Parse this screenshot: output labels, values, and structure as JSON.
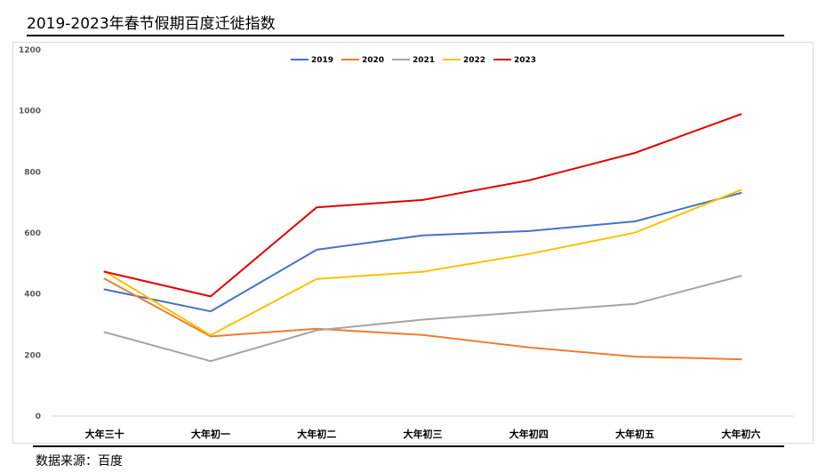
{
  "title": "2019-2023年春节假期百度迁徙指数",
  "source": "数据来源：百度",
  "chart_data": {
    "type": "line",
    "title": "2019-2023年春节假期百度迁徙指数",
    "categories": [
      "大年三十",
      "大年初一",
      "大年初二",
      "大年初三",
      "大年初四",
      "大年初五",
      "大年初六"
    ],
    "ylim": [
      0,
      1200
    ],
    "yticks": [
      0,
      200,
      400,
      600,
      800,
      1000,
      1200
    ],
    "grid": false,
    "legend": "top-center",
    "series": [
      {
        "name": "2019",
        "color": "#4472C4",
        "values": [
          415,
          343,
          545,
          592,
          606,
          638,
          731
        ]
      },
      {
        "name": "2020",
        "color": "#ED7D31",
        "values": [
          450,
          261,
          286,
          266,
          225,
          195,
          186
        ]
      },
      {
        "name": "2021",
        "color": "#A5A5A5",
        "values": [
          275,
          180,
          281,
          316,
          342,
          368,
          459
        ]
      },
      {
        "name": "2022",
        "color": "#FFC000",
        "values": [
          474,
          265,
          449,
          473,
          531,
          601,
          741
        ]
      },
      {
        "name": "2023",
        "color": "#E40000",
        "values": [
          473,
          392,
          684,
          708,
          772,
          862,
          989
        ]
      }
    ]
  }
}
